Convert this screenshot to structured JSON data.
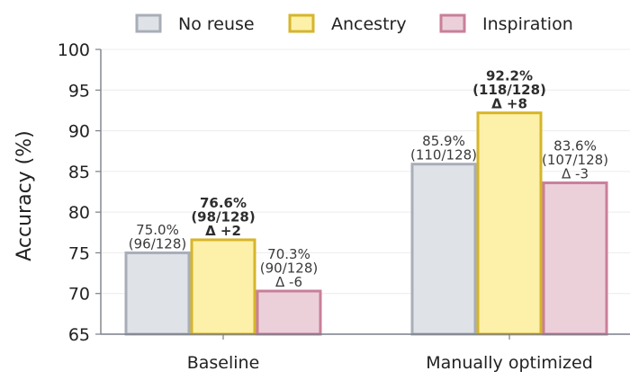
{
  "chart_data": {
    "type": "bar",
    "title": "",
    "xlabel": "",
    "ylabel": "Accuracy (%)",
    "ylim": [
      65,
      100
    ],
    "yticks": [
      65,
      70,
      75,
      80,
      85,
      90,
      95,
      100
    ],
    "grid": "y",
    "legend_position": "top",
    "categories": [
      "Baseline",
      "Manually optimized"
    ],
    "series": [
      {
        "name": "No reuse",
        "fill": "#dfe2e7",
        "stroke": "#a8aeb8",
        "values": [
          75.0,
          85.9
        ],
        "labels": [
          [
            "75.0%",
            "(96/128)"
          ],
          [
            "85.9%",
            "(110/128)"
          ]
        ],
        "bold": [
          false,
          false
        ]
      },
      {
        "name": "Ancestry",
        "fill": "#fdf0a8",
        "stroke": "#d6b52a",
        "values": [
          76.6,
          92.2
        ],
        "labels": [
          [
            "76.6%",
            "(98/128)",
            "Δ +2"
          ],
          [
            "92.2%",
            "(118/128)",
            "Δ +8"
          ]
        ],
        "bold": [
          true,
          true
        ]
      },
      {
        "name": "Inspiration",
        "fill": "#ebd0da",
        "stroke": "#c97f9a",
        "values": [
          70.3,
          83.6
        ],
        "labels": [
          [
            "70.3%",
            "(90/128)",
            "Δ -6"
          ],
          [
            "83.6%",
            "(107/128)",
            "Δ -3"
          ]
        ],
        "bold": [
          false,
          false
        ]
      }
    ]
  }
}
